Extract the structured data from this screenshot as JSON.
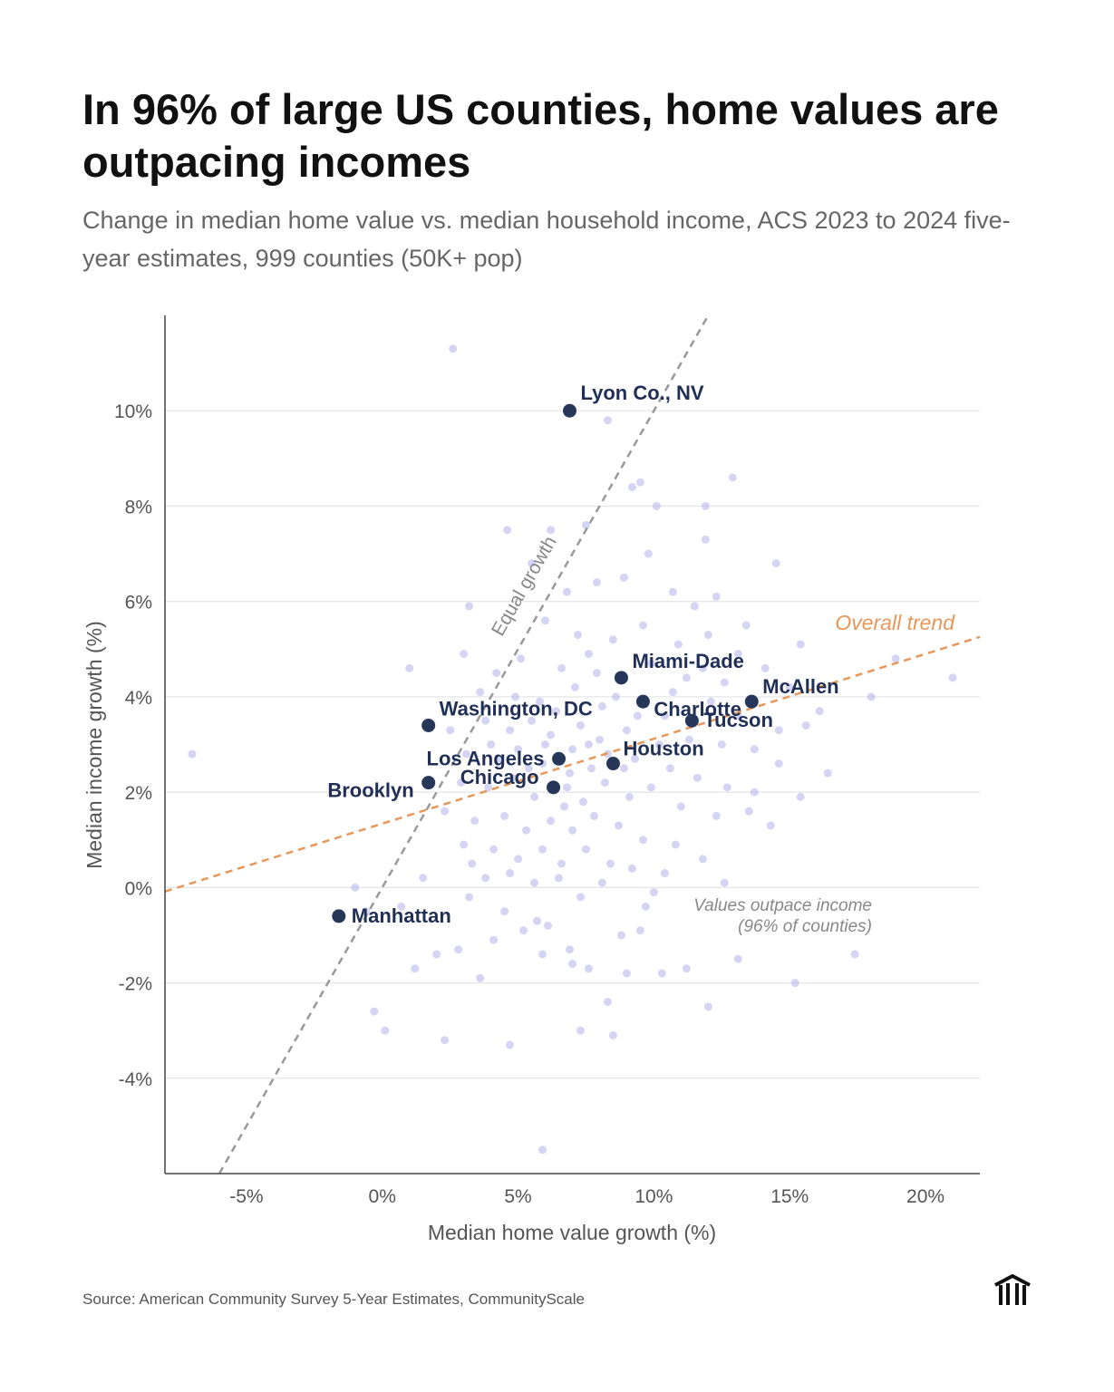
{
  "title": "In 96% of large US counties, home values are outpacing incomes",
  "subtitle": "Change in median home value vs. median household income, ACS 2023 to 2024 five-year estimates, 999 counties (50K+ pop)",
  "source": "Source: American Community Survey 5-Year Estimates, CommunityScale",
  "logo_icon": "building-columns-icon",
  "colors": {
    "points": "#b3b3ea",
    "highlight": "#263759",
    "trend": "#e8975a",
    "equal": "#999999",
    "grid": "#e6e6e6"
  },
  "chart_data": {
    "type": "scatter",
    "xlabel": "Median home value growth (%)",
    "ylabel": "Median income growth (%)",
    "xlim": [
      -8,
      22
    ],
    "ylim": [
      -6,
      12
    ],
    "xticks": [
      -5,
      0,
      5,
      10,
      15,
      20
    ],
    "xtick_labels": [
      "-5%",
      "0%",
      "5%",
      "10%",
      "15%",
      "20%"
    ],
    "yticks": [
      -4,
      -2,
      0,
      2,
      4,
      6,
      8,
      10
    ],
    "ytick_labels": [
      "-4%",
      "-2%",
      "0%",
      "2%",
      "4%",
      "6%",
      "8%",
      "10%"
    ],
    "grid": "horizontal",
    "highlighted": [
      {
        "name": "Lyon Co., NV",
        "x": 6.9,
        "y": 10.0
      },
      {
        "name": "Miami-Dade",
        "x": 8.8,
        "y": 4.4
      },
      {
        "name": "Charlotte",
        "x": 9.6,
        "y": 3.9
      },
      {
        "name": "Tucson",
        "x": 11.4,
        "y": 3.5
      },
      {
        "name": "McAllen",
        "x": 13.6,
        "y": 3.9
      },
      {
        "name": "Houston",
        "x": 8.5,
        "y": 2.6
      },
      {
        "name": "Los Angeles",
        "x": 6.5,
        "y": 2.7
      },
      {
        "name": "Chicago",
        "x": 6.3,
        "y": 2.1
      },
      {
        "name": "Washington, DC",
        "x": 1.7,
        "y": 3.4
      },
      {
        "name": "Brooklyn",
        "x": 1.7,
        "y": 2.2
      },
      {
        "name": "Manhattan",
        "x": -1.6,
        "y": -0.6
      }
    ],
    "reference_lines": [
      {
        "label": "Equal growth",
        "slope": 1,
        "intercept": 0,
        "style": "dashed",
        "color": "#999999"
      },
      {
        "label": "Overall trend",
        "slope": 0.178,
        "intercept": 1.34,
        "style": "dashed",
        "color": "#e8975a"
      }
    ],
    "annotation": [
      "Values outpace income",
      "(96% of counties)"
    ],
    "points": [
      [
        2.6,
        11.3
      ],
      [
        8.3,
        9.8
      ],
      [
        9.5,
        8.5
      ],
      [
        9.2,
        8.4
      ],
      [
        12.9,
        8.6
      ],
      [
        10.1,
        8.0
      ],
      [
        11.9,
        8.0
      ],
      [
        4.6,
        7.5
      ],
      [
        6.2,
        7.5
      ],
      [
        7.5,
        7.6
      ],
      [
        9.8,
        7.0
      ],
      [
        11.9,
        7.3
      ],
      [
        14.5,
        6.8
      ],
      [
        3.2,
        5.9
      ],
      [
        3.0,
        4.9
      ],
      [
        1.0,
        4.6
      ],
      [
        15.4,
        5.1
      ],
      [
        18.9,
        4.8
      ],
      [
        21.0,
        4.4
      ],
      [
        18.0,
        4.0
      ],
      [
        16.1,
        3.7
      ],
      [
        -7.0,
        2.8
      ],
      [
        16.4,
        2.4
      ],
      [
        14.3,
        1.3
      ],
      [
        12.6,
        0.1
      ],
      [
        1.5,
        0.2
      ],
      [
        -1.0,
        0.0
      ],
      [
        3.2,
        -0.2
      ],
      [
        -0.3,
        -2.6
      ],
      [
        0.1,
        -3.0
      ],
      [
        2.3,
        -3.2
      ],
      [
        4.7,
        -3.3
      ],
      [
        5.9,
        -5.5
      ],
      [
        7.3,
        -3.0
      ],
      [
        8.5,
        -3.1
      ],
      [
        8.3,
        -2.4
      ],
      [
        12.0,
        -2.5
      ],
      [
        15.2,
        -2.0
      ],
      [
        17.4,
        -1.4
      ],
      [
        13.1,
        -1.5
      ],
      [
        11.2,
        -1.7
      ],
      [
        10.3,
        -1.8
      ],
      [
        9.0,
        -1.8
      ],
      [
        7.6,
        -1.7
      ],
      [
        1.2,
        -1.7
      ],
      [
        3.6,
        -1.9
      ],
      [
        2.0,
        -1.4
      ],
      [
        4.1,
        -1.1
      ],
      [
        5.7,
        -0.7
      ],
      [
        9.5,
        -0.9
      ],
      [
        10.0,
        -0.1
      ],
      [
        -0.6,
        -0.5
      ],
      [
        0.7,
        -0.4
      ],
      [
        5.5,
        6.8
      ],
      [
        6.8,
        6.2
      ],
      [
        7.9,
        6.4
      ],
      [
        8.9,
        6.5
      ],
      [
        10.7,
        6.2
      ],
      [
        11.5,
        5.9
      ],
      [
        12.3,
        6.1
      ],
      [
        13.4,
        5.5
      ],
      [
        6.0,
        5.6
      ],
      [
        7.2,
        5.3
      ],
      [
        8.5,
        5.2
      ],
      [
        9.6,
        5.5
      ],
      [
        10.9,
        5.1
      ],
      [
        12.0,
        5.3
      ],
      [
        13.1,
        4.9
      ],
      [
        14.1,
        4.6
      ],
      [
        4.2,
        4.5
      ],
      [
        5.1,
        4.8
      ],
      [
        6.6,
        4.6
      ],
      [
        7.6,
        4.9
      ],
      [
        9.9,
        4.7
      ],
      [
        11.2,
        4.4
      ],
      [
        12.6,
        4.3
      ],
      [
        15.0,
        4.2
      ],
      [
        3.6,
        4.1
      ],
      [
        4.9,
        4.0
      ],
      [
        5.8,
        3.9
      ],
      [
        7.1,
        4.2
      ],
      [
        8.1,
        3.8
      ],
      [
        10.4,
        3.6
      ],
      [
        12.1,
        3.9
      ],
      [
        13.1,
        3.6
      ],
      [
        14.6,
        3.3
      ],
      [
        15.6,
        3.4
      ],
      [
        2.5,
        3.3
      ],
      [
        3.8,
        3.5
      ],
      [
        4.7,
        3.3
      ],
      [
        5.5,
        3.5
      ],
      [
        6.2,
        3.2
      ],
      [
        7.3,
        3.4
      ],
      [
        8.0,
        3.1
      ],
      [
        9.0,
        3.3
      ],
      [
        10.2,
        3.0
      ],
      [
        11.3,
        3.1
      ],
      [
        12.5,
        3.0
      ],
      [
        13.7,
        2.9
      ],
      [
        14.6,
        2.6
      ],
      [
        3.1,
        2.8
      ],
      [
        4.3,
        2.7
      ],
      [
        5.0,
        2.9
      ],
      [
        5.9,
        2.6
      ],
      [
        7.0,
        2.9
      ],
      [
        7.7,
        2.5
      ],
      [
        9.3,
        2.7
      ],
      [
        10.6,
        2.5
      ],
      [
        11.6,
        2.3
      ],
      [
        12.7,
        2.1
      ],
      [
        13.7,
        2.0
      ],
      [
        15.4,
        1.9
      ],
      [
        2.9,
        2.2
      ],
      [
        3.9,
        2.1
      ],
      [
        4.8,
        2.3
      ],
      [
        5.6,
        1.9
      ],
      [
        6.8,
        2.1
      ],
      [
        7.4,
        1.8
      ],
      [
        8.2,
        2.2
      ],
      [
        9.1,
        1.9
      ],
      [
        9.9,
        2.1
      ],
      [
        11.0,
        1.7
      ],
      [
        12.3,
        1.5
      ],
      [
        13.5,
        1.6
      ],
      [
        2.3,
        1.6
      ],
      [
        3.4,
        1.4
      ],
      [
        4.5,
        1.5
      ],
      [
        5.3,
        1.2
      ],
      [
        6.2,
        1.4
      ],
      [
        7.0,
        1.2
      ],
      [
        7.8,
        1.5
      ],
      [
        8.7,
        1.3
      ],
      [
        9.6,
        1.0
      ],
      [
        10.8,
        0.9
      ],
      [
        11.8,
        0.6
      ],
      [
        3.0,
        0.9
      ],
      [
        4.1,
        0.8
      ],
      [
        5.0,
        0.6
      ],
      [
        5.9,
        0.8
      ],
      [
        6.6,
        0.5
      ],
      [
        7.5,
        0.8
      ],
      [
        8.4,
        0.5
      ],
      [
        9.2,
        0.4
      ],
      [
        10.4,
        0.3
      ],
      [
        3.8,
        0.2
      ],
      [
        4.7,
        0.3
      ],
      [
        5.6,
        0.1
      ],
      [
        6.5,
        0.2
      ],
      [
        7.3,
        -0.2
      ],
      [
        8.1,
        0.1
      ],
      [
        9.7,
        -0.4
      ],
      [
        4.5,
        -0.5
      ],
      [
        5.2,
        -0.9
      ],
      [
        6.1,
        -0.8
      ],
      [
        6.9,
        -1.3
      ],
      [
        8.8,
        -1.0
      ],
      [
        2.8,
        -1.3
      ],
      [
        5.9,
        -1.4
      ],
      [
        7.0,
        -1.6
      ],
      [
        3.3,
        0.5
      ],
      [
        6.0,
        3.0
      ],
      [
        6.9,
        2.4
      ],
      [
        7.6,
        3.0
      ],
      [
        8.3,
        2.8
      ],
      [
        6.4,
        3.7
      ],
      [
        8.6,
        4.0
      ],
      [
        9.4,
        3.6
      ],
      [
        10.7,
        4.1
      ],
      [
        11.8,
        4.6
      ],
      [
        7.9,
        4.5
      ],
      [
        6.7,
        1.7
      ],
      [
        8.9,
        2.5
      ],
      [
        5.4,
        2.5
      ],
      [
        4.0,
        3.0
      ]
    ]
  }
}
